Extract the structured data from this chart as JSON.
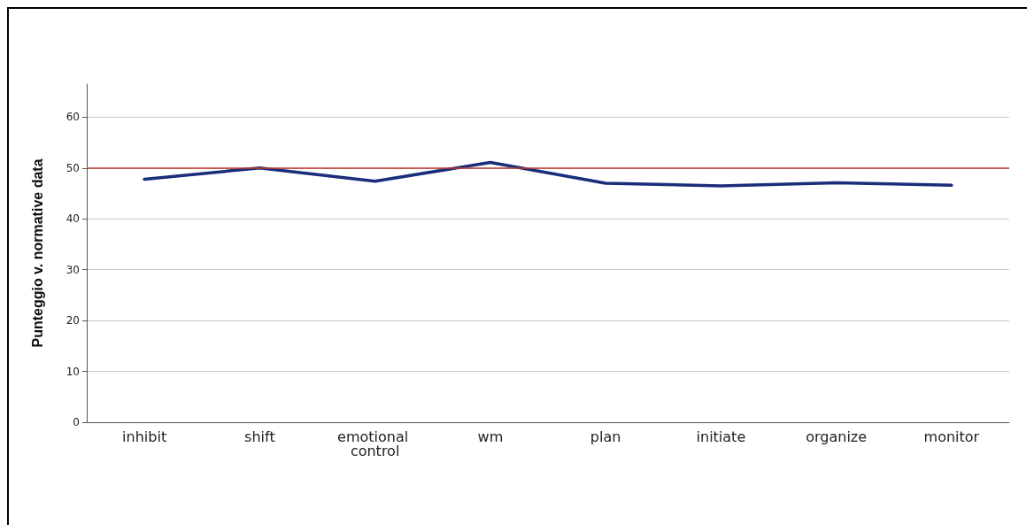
{
  "chart_data": {
    "type": "line",
    "ylabel": "Punteggio v. normative data",
    "categories": [
      "inhibit",
      "shift",
      "emotional control",
      "wm",
      "plan",
      "initiate",
      "organize",
      "monitor"
    ],
    "series": [
      {
        "color": "#1a2d7a",
        "values": [
          47.8,
          50,
          47.4,
          51.1,
          47,
          46.5,
          47.1,
          46.6
        ]
      }
    ],
    "ylim": [
      0,
      66.5
    ],
    "yticks": [
      0,
      10,
      20,
      30,
      40,
      50,
      60
    ],
    "grid": "y",
    "marker": "none",
    "line_style": "solid",
    "ref_lines": [
      {
        "axis": "y",
        "value": 50,
        "color": "#c0392b"
      }
    ]
  }
}
